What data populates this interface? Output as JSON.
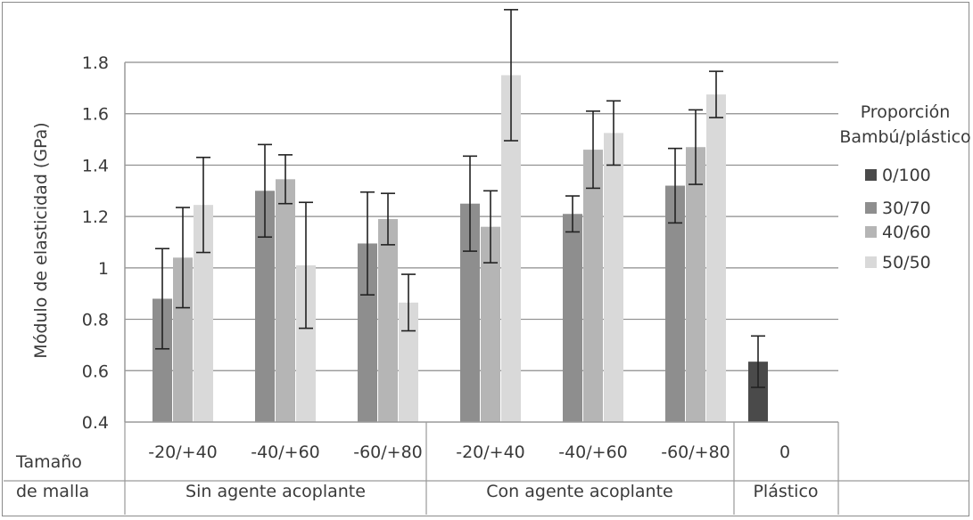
{
  "chart_data": {
    "type": "bar",
    "ylabel": "Módulo de elasticidad (GPa)",
    "ylim": [
      0.4,
      1.8
    ],
    "yticks": [
      0.4,
      0.6,
      0.8,
      1.0,
      1.2,
      1.4,
      1.6,
      1.8
    ],
    "ytick_labels": [
      "0.4",
      "0.6",
      "0.8",
      "1",
      "1.2",
      "1.4",
      "1.6",
      "1.8"
    ],
    "grid": true,
    "legend": {
      "title_line1": "Proporción",
      "title_line2": "Bambú/plástico",
      "placement": "right"
    },
    "row_label_line1": "Tamaño",
    "row_label_line2": "de malla",
    "groups": [
      {
        "name": "Sin agente acoplante",
        "categories": [
          "-20/+40",
          "-40/+60",
          "-60/+80"
        ]
      },
      {
        "name": "Con agente acoplante",
        "categories": [
          "-20/+40",
          "-40/+60",
          "-60/+80"
        ]
      },
      {
        "name": "Plástico",
        "categories": [
          "0"
        ]
      }
    ],
    "series": [
      {
        "name": "0/100",
        "color": "#4a4a4a",
        "values": [
          null,
          null,
          null,
          null,
          null,
          null,
          0.635
        ],
        "errors": [
          null,
          null,
          null,
          null,
          null,
          null,
          0.1
        ]
      },
      {
        "name": "30/70",
        "color": "#8e8e8e",
        "values": [
          0.88,
          1.3,
          1.095,
          1.25,
          1.21,
          1.32,
          null
        ],
        "errors": [
          0.195,
          0.18,
          0.2,
          0.185,
          0.07,
          0.145,
          null
        ]
      },
      {
        "name": "40/60",
        "color": "#b5b5b5",
        "values": [
          1.04,
          1.345,
          1.19,
          1.16,
          1.46,
          1.47,
          null
        ],
        "errors": [
          0.195,
          0.095,
          0.1,
          0.14,
          0.15,
          0.145,
          null
        ]
      },
      {
        "name": "50/50",
        "color": "#d9d9d9",
        "values": [
          1.245,
          1.01,
          0.865,
          1.75,
          1.525,
          1.675,
          null
        ],
        "errors": [
          0.185,
          0.245,
          0.11,
          0.255,
          0.125,
          0.09,
          null
        ]
      }
    ]
  }
}
